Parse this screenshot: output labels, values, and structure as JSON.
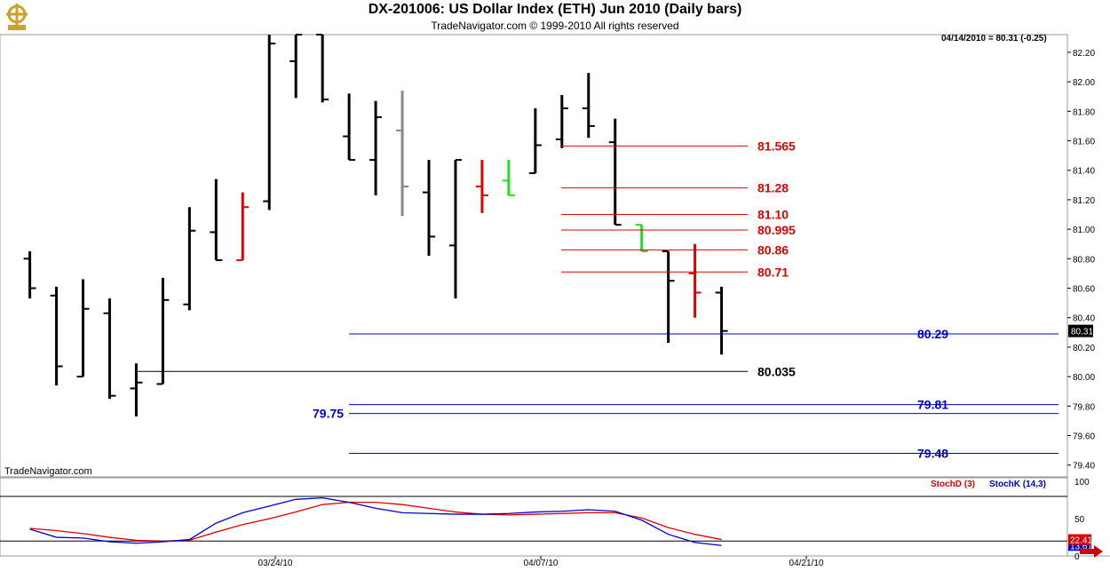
{
  "header": {
    "title": "DX-201006:  US Dollar Index (ETH) Jun 2010  (Daily bars)",
    "copyright": "TradeNavigator.com © 1999-2010 All rights reserved",
    "watermark": "TradeNavigator.com",
    "last_quote": "04/14/2010 = 80.31 (-0.25)"
  },
  "colors": {
    "bar_default": "#000000",
    "bar_red": "#e00000",
    "bar_green": "#22dd22",
    "bar_gray": "#888888",
    "level_red": "#e00000",
    "level_blue": "#0000cc",
    "level_black": "#000000",
    "stoch_d": "#dd0000",
    "stoch_k": "#0000cc"
  },
  "chart_data": [
    {
      "type": "ohlc",
      "ylim": [
        79.32,
        82.32
      ],
      "ytick_values": [
        79.4,
        79.6,
        79.8,
        80.0,
        80.2,
        80.4,
        80.6,
        80.8,
        81.0,
        81.2,
        81.4,
        81.6,
        81.8,
        82.0,
        82.2
      ],
      "y_ticks": [
        "79.40",
        "79.60",
        "79.80",
        "80.00",
        "80.20",
        "80.40",
        "80.60",
        "80.80",
        "81.00",
        "81.20",
        "81.40",
        "81.60",
        "81.80",
        "82.00",
        "82.20"
      ],
      "x_ticks": [
        "03/24/10",
        "04/07/10",
        "04/21/10"
      ],
      "last_price_label": "80.31",
      "bars": [
        {
          "o": 80.8,
          "h": 80.85,
          "l": 80.53,
          "c": 80.6,
          "color": "black"
        },
        {
          "o": 80.55,
          "h": 80.61,
          "l": 79.94,
          "c": 80.07,
          "color": "black"
        },
        {
          "o": 80.0,
          "h": 80.66,
          "l": 80.0,
          "c": 80.46,
          "color": "black"
        },
        {
          "o": 80.43,
          "h": 80.53,
          "l": 79.85,
          "c": 79.87,
          "color": "black"
        },
        {
          "o": 79.92,
          "h": 80.09,
          "l": 79.73,
          "c": 79.96,
          "color": "black"
        },
        {
          "o": 79.95,
          "h": 80.67,
          "l": 79.95,
          "c": 80.52,
          "color": "black"
        },
        {
          "o": 80.49,
          "h": 81.15,
          "l": 80.45,
          "c": 80.99,
          "color": "black"
        },
        {
          "o": 80.98,
          "h": 81.34,
          "l": 80.79,
          "c": 80.79,
          "color": "black"
        },
        {
          "o": 80.79,
          "h": 81.25,
          "l": 80.79,
          "c": 81.15,
          "color": "red"
        },
        {
          "o": 81.19,
          "h": 82.32,
          "l": 81.13,
          "c": 82.26,
          "color": "black"
        },
        {
          "o": 82.14,
          "h": 82.32,
          "l": 81.89,
          "c": 82.32,
          "color": "black"
        },
        {
          "o": 82.32,
          "h": 82.32,
          "l": 81.86,
          "c": 81.88,
          "color": "black"
        },
        {
          "o": 81.63,
          "h": 81.92,
          "l": 81.47,
          "c": 81.47,
          "color": "black"
        },
        {
          "o": 81.47,
          "h": 81.87,
          "l": 81.23,
          "c": 81.76,
          "color": "black"
        },
        {
          "o": 81.67,
          "h": 81.94,
          "l": 81.09,
          "c": 81.29,
          "color": "gray"
        },
        {
          "o": 81.25,
          "h": 81.47,
          "l": 80.82,
          "c": 80.95,
          "color": "black"
        },
        {
          "o": 80.89,
          "h": 81.47,
          "l": 80.53,
          "c": 81.47,
          "color": "black"
        },
        {
          "o": 81.29,
          "h": 81.47,
          "l": 81.11,
          "c": 81.23,
          "color": "red"
        },
        {
          "o": 81.33,
          "h": 81.47,
          "l": 81.23,
          "c": 81.23,
          "color": "green"
        },
        {
          "o": 81.38,
          "h": 81.82,
          "l": 81.38,
          "c": 81.57,
          "color": "black"
        },
        {
          "o": 81.61,
          "h": 81.91,
          "l": 81.55,
          "c": 81.82,
          "color": "black"
        },
        {
          "o": 81.82,
          "h": 82.06,
          "l": 81.62,
          "c": 81.7,
          "color": "black"
        },
        {
          "o": 81.59,
          "h": 81.75,
          "l": 81.03,
          "c": 81.03,
          "color": "black"
        },
        {
          "o": 81.03,
          "h": 81.03,
          "l": 80.85,
          "c": 80.85,
          "color": "green"
        },
        {
          "o": 80.85,
          "h": 80.85,
          "l": 80.23,
          "c": 80.65,
          "color": "black"
        },
        {
          "o": 80.7,
          "h": 80.9,
          "l": 80.4,
          "c": 80.57,
          "color": "red"
        },
        {
          "o": 80.57,
          "h": 80.61,
          "l": 80.15,
          "c": 80.31,
          "color": "black"
        }
      ],
      "levels": [
        {
          "value": 81.565,
          "label": "81.565",
          "color": "red",
          "start_bar": 21
        },
        {
          "value": 81.28,
          "label": "81.28",
          "color": "red",
          "start_bar": 21
        },
        {
          "value": 81.1,
          "label": "81.10",
          "color": "red",
          "start_bar": 21
        },
        {
          "value": 80.995,
          "label": "80.995",
          "color": "red",
          "start_bar": 21
        },
        {
          "value": 80.86,
          "label": "80.86",
          "color": "red",
          "start_bar": 21
        },
        {
          "value": 80.71,
          "label": "80.71",
          "color": "red",
          "start_bar": 21
        },
        {
          "value": 80.29,
          "label": "80.29",
          "color": "blue",
          "start_bar": 13
        },
        {
          "value": 80.035,
          "label": "80.035",
          "color": "black",
          "start_bar": 4
        },
        {
          "value": 79.81,
          "label": "79.81",
          "color": "blue",
          "start_bar": 13
        },
        {
          "value": 79.75,
          "label": "79.75",
          "color": "blue",
          "start_bar": 13
        },
        {
          "value": 79.48,
          "label": "79.48",
          "color": "blue",
          "start_bar": 13
        }
      ]
    },
    {
      "type": "line",
      "ylim": [
        0,
        105
      ],
      "y_ticks": [
        "100",
        "50",
        "0"
      ],
      "reference_lines": [
        80,
        20
      ],
      "series": [
        {
          "name": "StochD (3)",
          "color": "red",
          "values": [
            37,
            34,
            30,
            25,
            21,
            20,
            21,
            32,
            42,
            50,
            59,
            69,
            72,
            72,
            69,
            64,
            59,
            56,
            55,
            56,
            57,
            58,
            58,
            51,
            38,
            29,
            22
          ]
        },
        {
          "name": "StochK (14,3)",
          "color": "blue",
          "values": [
            36,
            25,
            24,
            19,
            17,
            19,
            22,
            44,
            58,
            67,
            76,
            78,
            72,
            64,
            58,
            57,
            56,
            56,
            57,
            59,
            60,
            62,
            60,
            48,
            29,
            18,
            14
          ]
        }
      ],
      "last_values": [
        "22.41",
        "13.61"
      ]
    }
  ]
}
